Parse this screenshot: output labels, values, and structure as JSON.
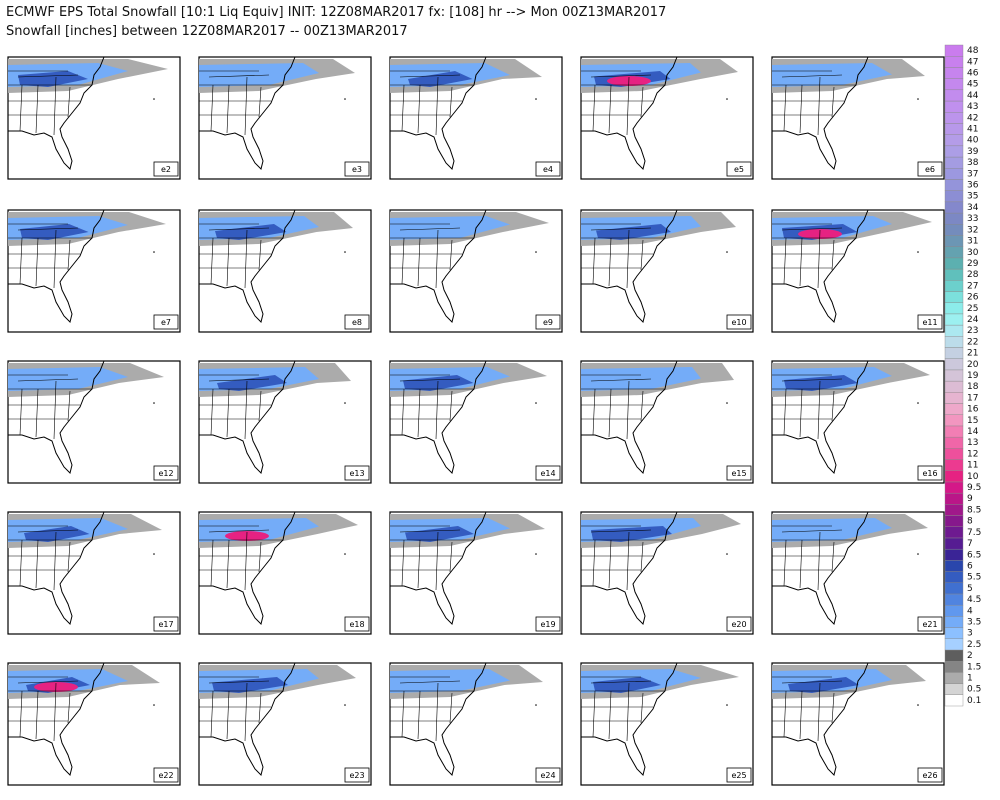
{
  "header": {
    "title": "ECMWF EPS Total Snowfall [10:1 Liq Equiv] INIT: 12Z08MAR2017 fx: [108] hr --> Mon 00Z13MAR2017",
    "subtitle": "Snowfall [inches] between 12Z08MAR2017 -- 00Z13MAR2017"
  },
  "panels": [
    {
      "label": "e2"
    },
    {
      "label": "e3"
    },
    {
      "label": "e4"
    },
    {
      "label": "e5"
    },
    {
      "label": "e6"
    },
    {
      "label": "e7"
    },
    {
      "label": "e8"
    },
    {
      "label": "e9"
    },
    {
      "label": "e10"
    },
    {
      "label": "e11"
    },
    {
      "label": "e12"
    },
    {
      "label": "e13"
    },
    {
      "label": "e14"
    },
    {
      "label": "e15"
    },
    {
      "label": "e16"
    },
    {
      "label": "e17"
    },
    {
      "label": "e18"
    },
    {
      "label": "e19"
    },
    {
      "label": "e20"
    },
    {
      "label": "e21"
    },
    {
      "label": "e22"
    },
    {
      "label": "e23"
    },
    {
      "label": "e24"
    },
    {
      "label": "e25"
    },
    {
      "label": "e26"
    }
  ],
  "colorbar": {
    "levels": [
      {
        "label": "0.1",
        "color": "#ffffff"
      },
      {
        "label": "0.5",
        "color": "#d4d4d4"
      },
      {
        "label": "1",
        "color": "#ababab"
      },
      {
        "label": "1.5",
        "color": "#858585"
      },
      {
        "label": "2",
        "color": "#5e5e5e"
      },
      {
        "label": "2.5",
        "color": "#a6d0ff"
      },
      {
        "label": "3",
        "color": "#8cc0ff"
      },
      {
        "label": "3.5",
        "color": "#74acf8"
      },
      {
        "label": "4",
        "color": "#6098ee"
      },
      {
        "label": "4.5",
        "color": "#5084e0"
      },
      {
        "label": "5",
        "color": "#4070d0"
      },
      {
        "label": "5.5",
        "color": "#345cc0"
      },
      {
        "label": "6",
        "color": "#2a46ac"
      },
      {
        "label": "6.5",
        "color": "#3a2496"
      },
      {
        "label": "7",
        "color": "#561c92"
      },
      {
        "label": "7.5",
        "color": "#6e1a90"
      },
      {
        "label": "8",
        "color": "#86188c"
      },
      {
        "label": "8.5",
        "color": "#a0188a"
      },
      {
        "label": "9",
        "color": "#ba1688"
      },
      {
        "label": "9.5",
        "color": "#d41888"
      },
      {
        "label": "10",
        "color": "#e62282"
      },
      {
        "label": "11",
        "color": "#ec3a90"
      },
      {
        "label": "12",
        "color": "#ee509c"
      },
      {
        "label": "13",
        "color": "#f066a8"
      },
      {
        "label": "14",
        "color": "#f27eb4"
      },
      {
        "label": "15",
        "color": "#f296c0"
      },
      {
        "label": "16",
        "color": "#eea8ca"
      },
      {
        "label": "17",
        "color": "#e6b4d0"
      },
      {
        "label": "18",
        "color": "#dcbcd4"
      },
      {
        "label": "19",
        "color": "#d4c4d8"
      },
      {
        "label": "20",
        "color": "#ccc8dc"
      },
      {
        "label": "21",
        "color": "#c4d0e2"
      },
      {
        "label": "22",
        "color": "#bcdcea"
      },
      {
        "label": "23",
        "color": "#ace8f0"
      },
      {
        "label": "24",
        "color": "#9cf0f0"
      },
      {
        "label": "25",
        "color": "#8cecea"
      },
      {
        "label": "26",
        "color": "#7ce0dc"
      },
      {
        "label": "27",
        "color": "#6cd0cc"
      },
      {
        "label": "28",
        "color": "#60c0bc"
      },
      {
        "label": "29",
        "color": "#5cb0b0"
      },
      {
        "label": "30",
        "color": "#64a2b0"
      },
      {
        "label": "31",
        "color": "#6c96b4"
      },
      {
        "label": "32",
        "color": "#748cbc"
      },
      {
        "label": "33",
        "color": "#7c88c4"
      },
      {
        "label": "34",
        "color": "#8488cc"
      },
      {
        "label": "35",
        "color": "#8c8ed4"
      },
      {
        "label": "36",
        "color": "#9494da"
      },
      {
        "label": "37",
        "color": "#9c98e0"
      },
      {
        "label": "38",
        "color": "#a49ce2"
      },
      {
        "label": "39",
        "color": "#ac9ee6"
      },
      {
        "label": "40",
        "color": "#b49ce8"
      },
      {
        "label": "41",
        "color": "#b898ea"
      },
      {
        "label": "42",
        "color": "#bc94ec"
      },
      {
        "label": "43",
        "color": "#c090ee"
      },
      {
        "label": "44",
        "color": "#c28cee"
      },
      {
        "label": "45",
        "color": "#c488ee"
      },
      {
        "label": "46",
        "color": "#c684ee"
      },
      {
        "label": "47",
        "color": "#c880ee"
      },
      {
        "label": "48",
        "color": "#ca7cee"
      }
    ]
  }
}
